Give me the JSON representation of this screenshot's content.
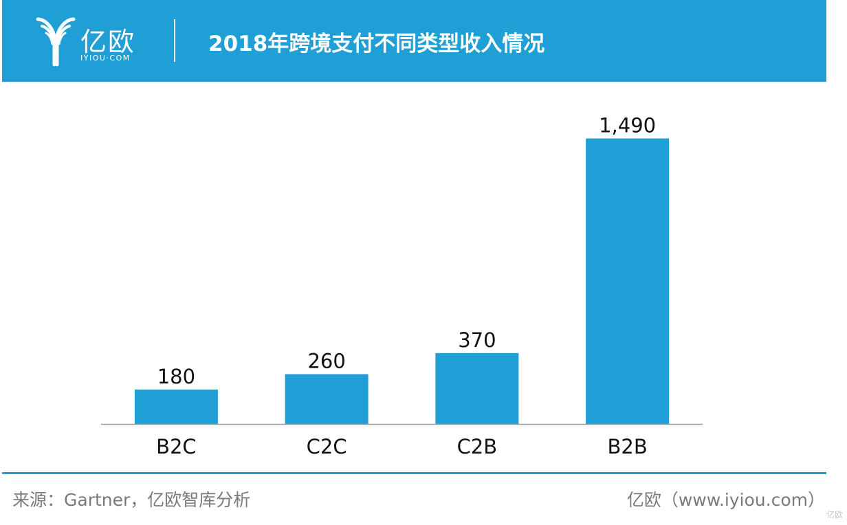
{
  "header": {
    "logo_text": "亿欧",
    "logo_subtext": "IYIOU·COM",
    "title": "2018年跨境支付不同类型收入情况"
  },
  "colors": {
    "brand": "#1f9fd5",
    "bar": "#1f9fd5",
    "axis": "#9a9a9a",
    "footer_text": "#7a7a7a"
  },
  "chart_data": {
    "type": "bar",
    "title": "2018年跨境支付不同类型收入情况",
    "categories": [
      "B2C",
      "C2C",
      "C2B",
      "B2B"
    ],
    "values": [
      180,
      260,
      370,
      1490
    ],
    "value_labels": [
      "180",
      "260",
      "370",
      "1,490"
    ],
    "xlabel": "",
    "ylabel": "",
    "ylim": [
      0,
      1700
    ],
    "grid": false,
    "legend": "none"
  },
  "footer": {
    "source": "来源：Gartner，亿欧智库分析",
    "credit": "亿欧（www.iyiou.com）",
    "watermark": "亿欧"
  }
}
